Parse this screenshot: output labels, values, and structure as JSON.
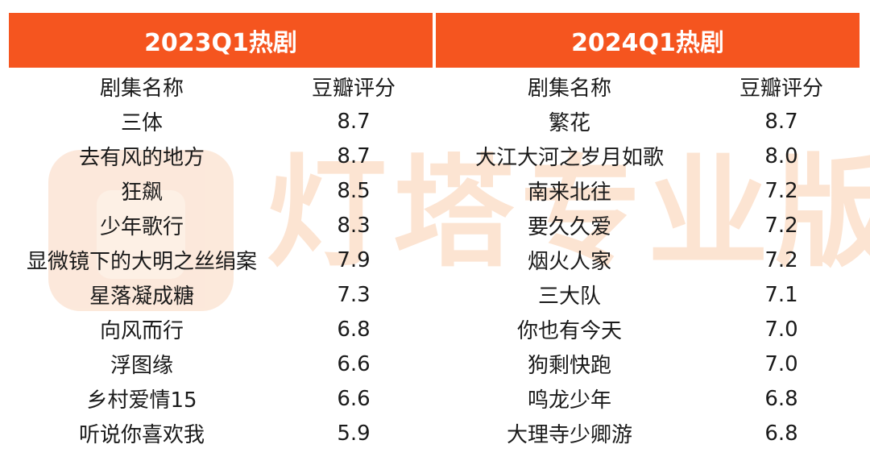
{
  "watermark": "灯塔专业版",
  "chart_data": [
    {
      "type": "table",
      "title": "2023Q1热剧",
      "columns": [
        "剧集名称",
        "豆瓣评分"
      ],
      "rows": [
        {
          "name": "三体",
          "score": "8.7"
        },
        {
          "name": "去有风的地方",
          "score": "8.7"
        },
        {
          "name": "狂飙",
          "score": "8.5"
        },
        {
          "name": "少年歌行",
          "score": "8.3"
        },
        {
          "name": "显微镜下的大明之丝绢案",
          "score": "7.9"
        },
        {
          "name": "星落凝成糖",
          "score": "7.3"
        },
        {
          "name": "向风而行",
          "score": "6.8"
        },
        {
          "name": "浮图缘",
          "score": "6.6"
        },
        {
          "name": "乡村爱情15",
          "score": "6.6"
        },
        {
          "name": "听说你喜欢我",
          "score": "5.9"
        }
      ]
    },
    {
      "type": "table",
      "title": "2024Q1热剧",
      "columns": [
        "剧集名称",
        "豆瓣评分"
      ],
      "rows": [
        {
          "name": "繁花",
          "score": "8.7"
        },
        {
          "name": "大江大河之岁月如歌",
          "score": "8.0"
        },
        {
          "name": "南来北往",
          "score": "7.2"
        },
        {
          "name": "要久久爱",
          "score": "7.2"
        },
        {
          "name": "烟火人家",
          "score": "7.2"
        },
        {
          "name": "三大队",
          "score": "7.1"
        },
        {
          "name": "你也有今天",
          "score": "7.0"
        },
        {
          "name": "狗剩快跑",
          "score": "7.0"
        },
        {
          "name": "鸣龙少年",
          "score": "6.8"
        },
        {
          "name": "大理寺少卿游",
          "score": "6.8"
        }
      ]
    }
  ],
  "colors": {
    "header_bg": "#f5551f",
    "header_text": "#ffffff",
    "watermark": "#fcd9c0"
  }
}
